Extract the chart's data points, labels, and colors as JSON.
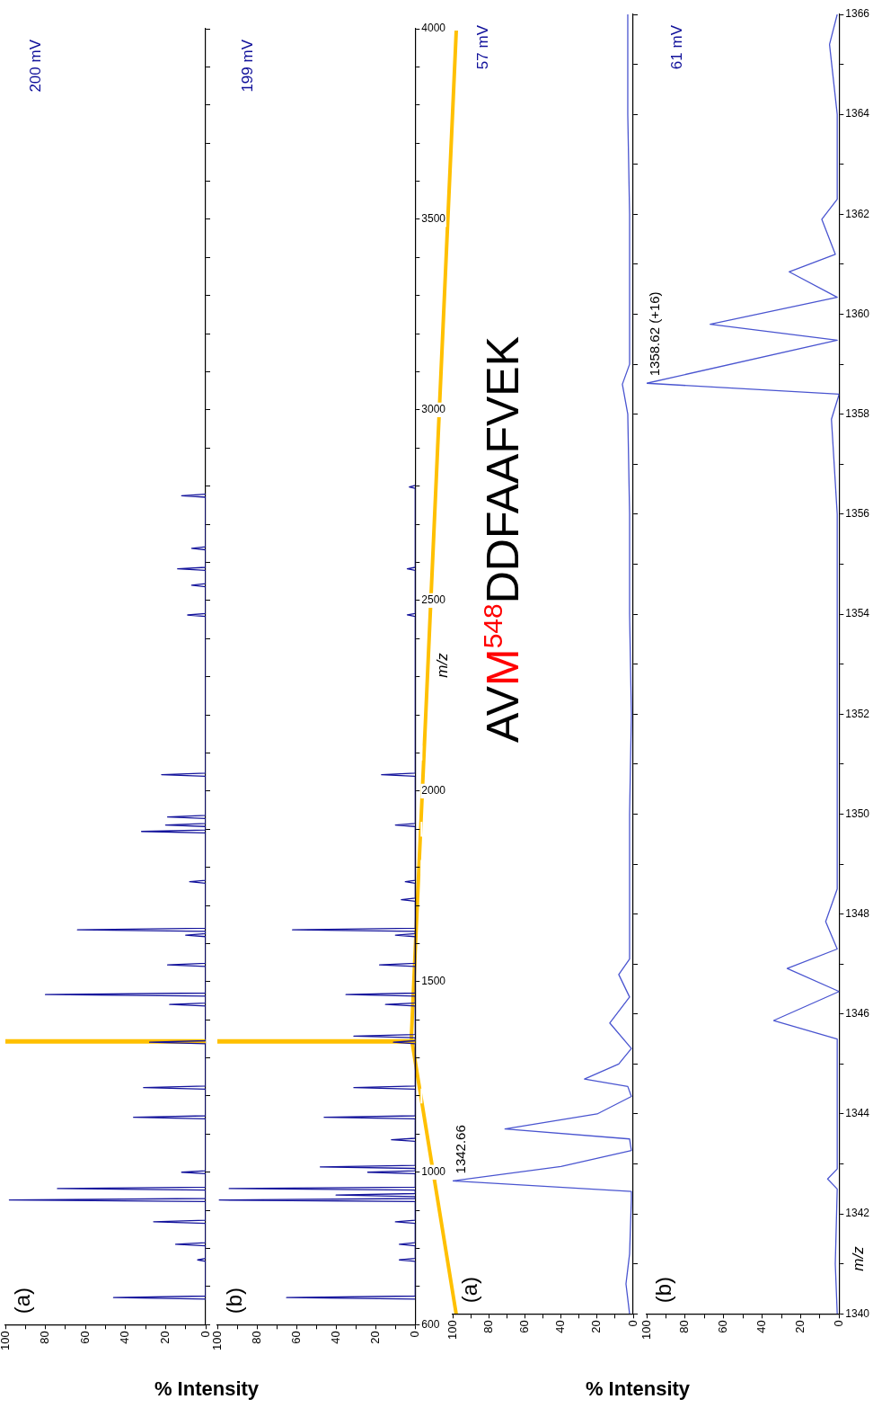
{
  "chart_data": [
    {
      "type": "line",
      "orientation": "horizontal",
      "color": "#14149c",
      "xlabel": "% Intensity",
      "tick_labels": "x",
      "annotations": [
        "(a)",
        "200 mV"
      ],
      "ref_lines": [
        {
          "axis": "y",
          "value": 1343,
          "color": "#ffc000"
        }
      ],
      "x": [
        667,
        671,
        675,
        766,
        770,
        774,
        807,
        811,
        815,
        866,
        870,
        874,
        923,
        927,
        931,
        953,
        957,
        961,
        996,
        1000,
        1004,
        1140,
        1144,
        1148,
        1218,
        1222,
        1226,
        1337,
        1341,
        1345,
        1436,
        1440,
        1444,
        1462,
        1466,
        1470,
        1540,
        1544,
        1548,
        1618,
        1622,
        1626,
        1632,
        1636,
        1640,
        1758,
        1762,
        1766,
        1890,
        1894,
        1898,
        1907,
        1911,
        1915,
        1928,
        1932,
        1936,
        2039,
        2043,
        2047,
        2458,
        2462,
        2466,
        2536,
        2540,
        2544,
        2579,
        2583,
        2587,
        2633,
        2637,
        2641,
        2771,
        2775,
        2779
      ],
      "values": [
        0,
        46,
        0,
        0,
        4,
        0,
        0,
        15,
        0,
        0,
        26,
        0,
        0,
        98,
        0,
        0,
        74,
        0,
        0,
        12,
        0,
        0,
        36,
        0,
        0,
        31,
        0,
        0,
        28,
        0,
        0,
        18,
        0,
        0,
        80,
        0,
        0,
        19,
        0,
        0,
        10,
        0,
        0,
        64,
        0,
        0,
        8,
        0,
        0,
        32,
        0,
        0,
        20,
        0,
        0,
        19,
        0,
        0,
        22,
        0,
        0,
        9,
        0,
        0,
        7,
        0,
        0,
        14,
        0,
        0,
        7,
        0,
        0,
        12,
        0
      ],
      "xlim": [
        100,
        0
      ],
      "xticks": [
        0,
        {
          "value": 10,
          "label": null
        },
        20,
        {
          "value": 30,
          "label": null
        },
        40,
        {
          "value": 50,
          "label": null
        },
        60,
        {
          "value": 70,
          "label": null
        },
        80,
        {
          "value": 90,
          "label": null
        },
        100
      ],
      "ylim": [
        600,
        4000
      ],
      "yticks": [
        600,
        {
          "value": 700,
          "label": null
        },
        {
          "value": 800,
          "label": null
        },
        {
          "value": 900,
          "label": null
        },
        1000,
        {
          "value": 1100,
          "label": null
        },
        {
          "value": 1200,
          "label": null
        },
        {
          "value": 1300,
          "label": null
        },
        {
          "value": 1400,
          "label": null
        },
        1500,
        {
          "value": 1600,
          "label": null
        },
        {
          "value": 1700,
          "label": null
        },
        {
          "value": 1800,
          "label": null
        },
        {
          "value": 1900,
          "label": null
        },
        2000,
        {
          "value": 2100,
          "label": null
        },
        {
          "value": 2200,
          "label": null
        },
        {
          "value": 2300,
          "label": null
        },
        {
          "value": 2400,
          "label": null
        },
        2500,
        {
          "value": 2600,
          "label": null
        },
        {
          "value": 2700,
          "label": null
        },
        {
          "value": 2800,
          "label": null
        },
        {
          "value": 2900,
          "label": null
        },
        3000,
        {
          "value": 3100,
          "label": null
        },
        {
          "value": 3200,
          "label": null
        },
        {
          "value": 3300,
          "label": null
        },
        {
          "value": 3400,
          "label": null
        },
        3500,
        {
          "value": 3600,
          "label": null
        },
        {
          "value": 3700,
          "label": null
        },
        {
          "value": 3800,
          "label": null
        },
        {
          "value": 3900,
          "label": null
        },
        4000
      ]
    },
    {
      "type": "line",
      "orientation": "horizontal",
      "color": "#14149c",
      "ylabel": "m/z",
      "annotations": [
        "(b)",
        "199 mV"
      ],
      "ref_lines": [
        {
          "axis": "y",
          "value": 1343,
          "color": "#ffc000"
        }
      ],
      "x": [
        667,
        671,
        675,
        766,
        770,
        774,
        807,
        811,
        815,
        866,
        870,
        874,
        923,
        927,
        931,
        936,
        940,
        944,
        953,
        957,
        961,
        996,
        1000,
        1004,
        1010,
        1014,
        1018,
        1081,
        1085,
        1089,
        1140,
        1144,
        1148,
        1218,
        1222,
        1226,
        1337,
        1341,
        1345,
        1353,
        1357,
        1361,
        1436,
        1440,
        1444,
        1462,
        1466,
        1470,
        1540,
        1544,
        1548,
        1618,
        1622,
        1626,
        1632,
        1636,
        1640,
        1711,
        1715,
        1719,
        1758,
        1762,
        1766,
        1907,
        1911,
        1915,
        2039,
        2043,
        2047,
        2458,
        2462,
        2466,
        2579,
        2583,
        2587,
        2794,
        2798,
        2802
      ],
      "values": [
        0,
        65,
        0,
        0,
        8,
        0,
        0,
        8,
        0,
        0,
        10,
        0,
        0,
        99,
        0,
        0,
        40,
        0,
        0,
        94,
        0,
        0,
        24,
        0,
        0,
        48,
        0,
        0,
        12,
        0,
        0,
        46,
        0,
        0,
        31,
        0,
        0,
        11,
        0,
        0,
        31,
        0,
        0,
        15,
        0,
        0,
        35,
        0,
        0,
        18,
        0,
        0,
        10,
        0,
        0,
        62,
        0,
        0,
        7,
        0,
        0,
        5,
        0,
        0,
        10,
        0,
        0,
        17,
        0,
        0,
        4,
        0,
        0,
        4,
        0,
        0,
        3,
        0
      ],
      "xlim": [
        100,
        0
      ],
      "xticks": [
        0,
        {
          "value": 10,
          "label": null
        },
        20,
        {
          "value": 30,
          "label": null
        },
        40,
        {
          "value": 50,
          "label": null
        },
        60,
        {
          "value": 70,
          "label": null
        },
        80,
        {
          "value": 90,
          "label": null
        },
        100
      ],
      "ylim": [
        600,
        4000
      ],
      "yticks": [
        600,
        {
          "value": 700,
          "label": null
        },
        {
          "value": 800,
          "label": null
        },
        {
          "value": 900,
          "label": null
        },
        1000,
        {
          "value": 1100,
          "label": null
        },
        {
          "value": 1200,
          "label": null
        },
        {
          "value": 1300,
          "label": null
        },
        {
          "value": 1400,
          "label": null
        },
        1500,
        {
          "value": 1600,
          "label": null
        },
        {
          "value": 1700,
          "label": null
        },
        {
          "value": 1800,
          "label": null
        },
        {
          "value": 1900,
          "label": null
        },
        2000,
        {
          "value": 2100,
          "label": null
        },
        {
          "value": 2200,
          "label": null
        },
        {
          "value": 2300,
          "label": null
        },
        {
          "value": 2400,
          "label": null
        },
        2500,
        {
          "value": 2600,
          "label": null
        },
        {
          "value": 2700,
          "label": null
        },
        {
          "value": 2800,
          "label": null
        },
        {
          "value": 2900,
          "label": null
        },
        3000,
        {
          "value": 3100,
          "label": null
        },
        {
          "value": 3200,
          "label": null
        },
        {
          "value": 3300,
          "label": null
        },
        {
          "value": 3400,
          "label": null
        },
        3500,
        {
          "value": 3600,
          "label": null
        },
        {
          "value": 3700,
          "label": null
        },
        {
          "value": 3800,
          "label": null
        },
        {
          "value": 3900,
          "label": null
        },
        4000
      ]
    },
    {
      "type": "line",
      "orientation": "horizontal",
      "color": "#4a55d0",
      "xlabel": "% Intensity",
      "tick_labels": "x",
      "annotations": [
        "(a)",
        "57 mV",
        "1342.66",
        "AVM$^{548}$DDFAAFVEK"
      ],
      "x": [
        1340,
        1340.6,
        1341.2,
        1342.3,
        1342.45,
        1342.66,
        1342.95,
        1343.27,
        1343.5,
        1343.7,
        1344.0,
        1344.35,
        1344.55,
        1344.7,
        1345.0,
        1345.31,
        1345.82,
        1346.34,
        1346.79,
        1347.1,
        1348,
        1350,
        1352,
        1354,
        1356,
        1358,
        1358.6,
        1359,
        1362,
        1364,
        1366
      ],
      "values": [
        2,
        4,
        2,
        1,
        1,
        100,
        40,
        1,
        2,
        71,
        20,
        1,
        3,
        27,
        8,
        1,
        13,
        2,
        8,
        2,
        2,
        2,
        1,
        2,
        2,
        3,
        6,
        2,
        2,
        3,
        3
      ],
      "xlim": [
        100,
        0
      ],
      "xticks": [
        0,
        {
          "value": 10,
          "label": null
        },
        20,
        {
          "value": 30,
          "label": null
        },
        40,
        {
          "value": 50,
          "label": null
        },
        60,
        {
          "value": 70,
          "label": null
        },
        80,
        {
          "value": 90,
          "label": null
        },
        100
      ],
      "ylim": [
        1340,
        1366
      ],
      "yticks": [
        1340,
        {
          "value": 1341,
          "label": null
        },
        1342,
        {
          "value": 1343,
          "label": null
        },
        1344,
        {
          "value": 1345,
          "label": null
        },
        1346,
        {
          "value": 1347,
          "label": null
        },
        1348,
        {
          "value": 1349,
          "label": null
        },
        1350,
        {
          "value": 1351,
          "label": null
        },
        1352,
        {
          "value": 1353,
          "label": null
        },
        1354,
        {
          "value": 1355,
          "label": null
        },
        1356,
        {
          "value": 1357,
          "label": null
        },
        1358,
        {
          "value": 1359,
          "label": null
        },
        1360,
        {
          "value": 1361,
          "label": null
        },
        1362,
        {
          "value": 1363,
          "label": null
        },
        1364,
        {
          "value": 1365,
          "label": null
        },
        1366
      ]
    },
    {
      "type": "line",
      "orientation": "horizontal",
      "color": "#4a55d0",
      "ylabel": "m/z",
      "annotations": [
        "(b)",
        "61 mV",
        "1358.62 (+16)"
      ],
      "x": [
        1340,
        1341,
        1342.5,
        1342.7,
        1342.9,
        1345.5,
        1345.87,
        1346.45,
        1346.91,
        1347.3,
        1347.85,
        1348.5,
        1352,
        1356,
        1357.9,
        1358.4,
        1358.62,
        1359.48,
        1359.8,
        1360.34,
        1360.85,
        1361.2,
        1361.9,
        1362.3,
        1364,
        1365.4,
        1366
      ],
      "values": [
        1,
        2,
        1,
        6,
        1,
        1,
        34,
        0,
        27,
        1,
        7,
        1,
        1,
        1,
        4,
        0,
        100,
        1,
        67,
        1,
        26,
        2,
        9,
        1,
        1,
        5,
        1
      ],
      "xlim": [
        100,
        0
      ],
      "xticks": [
        0,
        {
          "value": 10,
          "label": null
        },
        20,
        {
          "value": 30,
          "label": null
        },
        40,
        {
          "value": 50,
          "label": null
        },
        60,
        {
          "value": 70,
          "label": null
        },
        80,
        {
          "value": 90,
          "label": null
        },
        100
      ],
      "ylim": [
        1340,
        1366
      ],
      "yticks": [
        1340,
        {
          "value": 1341,
          "label": null
        },
        1342,
        {
          "value": 1343,
          "label": null
        },
        1344,
        {
          "value": 1345,
          "label": null
        },
        1346,
        {
          "value": 1347,
          "label": null
        },
        1348,
        {
          "value": 1349,
          "label": null
        },
        1350,
        {
          "value": 1351,
          "label": null
        },
        1352,
        {
          "value": 1353,
          "label": null
        },
        1354,
        {
          "value": 1355,
          "label": null
        },
        1356,
        {
          "value": 1357,
          "label": null
        },
        1358,
        {
          "value": 1359,
          "label": null
        },
        1360,
        {
          "value": 1361,
          "label": null
        },
        1362,
        {
          "value": 1363,
          "label": null
        },
        1364,
        {
          "value": 1365,
          "label": null
        },
        1366
      ]
    }
  ]
}
